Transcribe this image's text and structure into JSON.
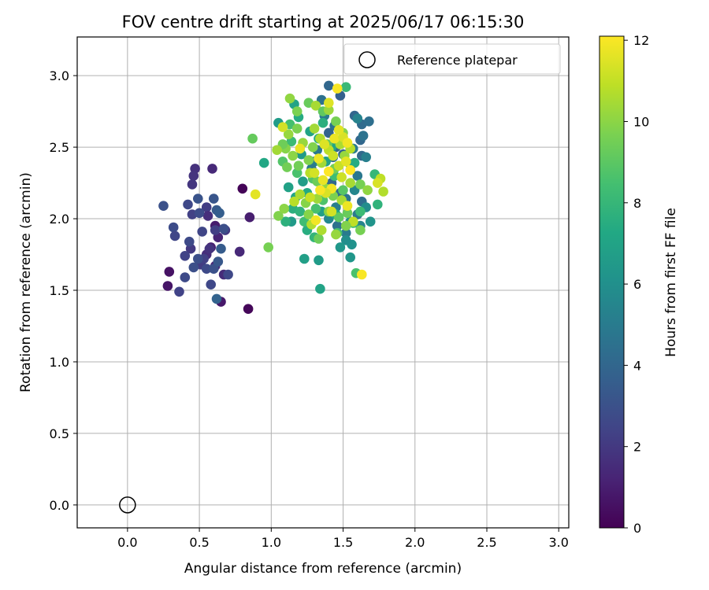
{
  "chart_data": {
    "type": "scatter",
    "title": "FOV centre drift starting at 2025/06/17 06:15:30",
    "xlabel": "Angular distance from reference (arcmin)",
    "ylabel": "Rotation from reference (arcmin)",
    "xlim": [
      -0.35,
      3.07
    ],
    "ylim": [
      -0.16,
      3.27
    ],
    "x_ticks": [
      "0.0",
      "0.5",
      "1.0",
      "1.5",
      "2.0",
      "2.5",
      "3.0"
    ],
    "y_ticks": [
      "0.0",
      "0.5",
      "1.0",
      "1.5",
      "2.0",
      "2.5",
      "3.0"
    ],
    "grid": true,
    "legend": {
      "position": "top-right",
      "entries": [
        {
          "label": "Reference platepar",
          "marker": "open-circle"
        }
      ]
    },
    "reference_point": {
      "label": "Reference platepar",
      "x": 0.0,
      "y": 0.0
    },
    "colorbar": {
      "label": "Hours from first FF file",
      "colormap": "viridis",
      "range": [
        0,
        12.1
      ],
      "ticks": [
        "0",
        "2",
        "4",
        "6",
        "8",
        "10",
        "12"
      ]
    },
    "series": [
      {
        "color_by": "Hours from first FF file",
        "points": [
          [
            0.29,
            1.63,
            0.6
          ],
          [
            0.28,
            1.53,
            0.7
          ],
          [
            0.65,
            1.42,
            0.8
          ],
          [
            0.84,
            1.37,
            0.2
          ],
          [
            0.8,
            2.21,
            0.1
          ],
          [
            0.85,
            2.01,
            1.0
          ],
          [
            0.78,
            1.77,
            1.4
          ],
          [
            0.61,
            1.95,
            0.9
          ],
          [
            0.63,
            1.87,
            1.2
          ],
          [
            0.67,
            1.61,
            1.5
          ],
          [
            0.61,
            1.67,
            1.3
          ],
          [
            0.58,
            1.8,
            1.1
          ],
          [
            0.55,
            1.75,
            1.6
          ],
          [
            0.47,
            2.35,
            1.7
          ],
          [
            0.46,
            2.3,
            1.8
          ],
          [
            0.45,
            2.24,
            1.9
          ],
          [
            0.59,
            2.35,
            1.4
          ],
          [
            0.55,
            2.08,
            2.2
          ],
          [
            0.56,
            2.02,
            1.6
          ],
          [
            0.52,
            1.91,
            2.5
          ],
          [
            0.58,
            1.54,
            2.6
          ],
          [
            0.51,
            1.68,
            2.1
          ],
          [
            0.53,
            1.72,
            2.3
          ],
          [
            0.44,
            1.79,
            2.0
          ],
          [
            0.4,
            1.74,
            2.4
          ],
          [
            0.49,
            1.72,
            2.9
          ],
          [
            0.55,
            1.65,
            2.7
          ],
          [
            0.57,
            1.79,
            1.8
          ],
          [
            0.61,
            1.92,
            2.2
          ],
          [
            0.68,
            1.92,
            2.0
          ],
          [
            0.25,
            2.09,
            3.0
          ],
          [
            0.42,
            2.1,
            2.6
          ],
          [
            0.45,
            2.03,
            2.3
          ],
          [
            0.49,
            2.14,
            3.1
          ],
          [
            0.5,
            2.04,
            2.8
          ],
          [
            0.6,
            2.14,
            3.2
          ],
          [
            0.62,
            2.06,
            3.4
          ],
          [
            0.64,
            2.04,
            3.6
          ],
          [
            0.32,
            1.94,
            2.8
          ],
          [
            0.33,
            1.88,
            2.5
          ],
          [
            0.43,
            1.84,
            2.7
          ],
          [
            0.4,
            1.59,
            2.7
          ],
          [
            0.36,
            1.49,
            2.4
          ],
          [
            0.46,
            1.66,
            2.9
          ],
          [
            0.6,
            1.65,
            3.0
          ],
          [
            0.63,
            1.7,
            3.3
          ],
          [
            0.65,
            1.79,
            3.5
          ],
          [
            0.62,
            1.44,
            3.8
          ],
          [
            0.7,
            1.61,
            2.6
          ],
          [
            0.67,
            1.93,
            2.9
          ],
          [
            1.4,
            2.93,
            4.0
          ],
          [
            1.48,
            2.86,
            3.7
          ],
          [
            1.35,
            2.83,
            4.5
          ],
          [
            1.37,
            2.72,
            5.0
          ],
          [
            1.44,
            2.65,
            4.6
          ],
          [
            1.4,
            2.6,
            3.9
          ],
          [
            1.45,
            2.5,
            4.2
          ],
          [
            1.5,
            2.45,
            3.8
          ],
          [
            1.43,
            2.43,
            4.4
          ],
          [
            1.32,
            2.48,
            4.8
          ],
          [
            1.3,
            2.4,
            5.2
          ],
          [
            1.28,
            2.35,
            4.9
          ],
          [
            1.35,
            2.2,
            5.4
          ],
          [
            1.42,
            2.25,
            4.1
          ],
          [
            1.48,
            2.18,
            4.3
          ],
          [
            1.52,
            2.14,
            4.7
          ],
          [
            1.45,
            2.08,
            5.1
          ],
          [
            1.4,
            2.0,
            5.6
          ],
          [
            1.46,
            1.95,
            4.5
          ],
          [
            1.52,
            1.9,
            5.0
          ],
          [
            1.58,
            2.72,
            3.9
          ],
          [
            1.63,
            2.66,
            4.2
          ],
          [
            1.68,
            2.68,
            4.4
          ],
          [
            1.6,
            2.7,
            5.3
          ],
          [
            1.62,
            2.55,
            4.0
          ],
          [
            1.64,
            2.58,
            4.6
          ],
          [
            1.57,
            2.49,
            5.0
          ],
          [
            1.63,
            2.44,
            4.1
          ],
          [
            1.66,
            2.43,
            5.2
          ],
          [
            1.55,
            2.38,
            5.7
          ],
          [
            1.6,
            2.3,
            4.8
          ],
          [
            1.58,
            2.2,
            5.5
          ],
          [
            1.63,
            2.12,
            4.3
          ],
          [
            1.66,
            2.08,
            5.8
          ],
          [
            1.6,
            2.03,
            4.9
          ],
          [
            1.55,
            1.98,
            6.0
          ],
          [
            1.62,
            1.95,
            5.4
          ],
          [
            1.69,
            1.98,
            6.2
          ],
          [
            1.56,
            1.82,
            6.1
          ],
          [
            1.52,
            1.85,
            5.9
          ],
          [
            1.55,
            1.73,
            6.3
          ],
          [
            1.48,
            1.8,
            6.4
          ],
          [
            1.33,
            1.71,
            6.6
          ],
          [
            1.23,
            1.72,
            6.8
          ],
          [
            1.34,
            1.51,
            7.0
          ],
          [
            1.05,
            2.67,
            6.6
          ],
          [
            0.95,
            2.39,
            7.2
          ],
          [
            1.16,
            2.8,
            7.0
          ],
          [
            1.19,
            2.71,
            7.4
          ],
          [
            1.12,
            2.22,
            6.9
          ],
          [
            1.15,
            2.07,
            7.6
          ],
          [
            1.17,
            2.15,
            7.1
          ],
          [
            1.22,
            2.26,
            6.7
          ],
          [
            1.25,
            2.18,
            7.3
          ],
          [
            1.2,
            2.05,
            7.8
          ],
          [
            1.14,
            1.98,
            6.5
          ],
          [
            1.1,
            1.98,
            7.7
          ],
          [
            1.25,
            1.92,
            7.5
          ],
          [
            1.3,
            1.87,
            7.9
          ],
          [
            1.35,
            2.05,
            6.8
          ],
          [
            1.45,
            2.03,
            7.2
          ],
          [
            1.38,
            2.4,
            6.9
          ],
          [
            1.42,
            2.5,
            7.1
          ],
          [
            1.33,
            2.56,
            7.3
          ],
          [
            1.36,
            2.67,
            7.6
          ],
          [
            1.27,
            2.61,
            7.0
          ],
          [
            1.21,
            2.45,
            6.6
          ],
          [
            1.58,
            2.39,
            7.4
          ],
          [
            1.72,
            2.31,
            8.0
          ],
          [
            1.74,
            2.1,
            7.8
          ],
          [
            1.62,
            2.05,
            8.2
          ],
          [
            1.57,
            1.97,
            8.4
          ],
          [
            1.59,
            1.62,
            8.6
          ],
          [
            1.52,
            2.92,
            8.1
          ],
          [
            1.31,
            2.07,
            8.5
          ],
          [
            1.36,
            2.13,
            8.7
          ],
          [
            1.44,
            2.3,
            8.3
          ],
          [
            1.5,
            2.2,
            8.9
          ],
          [
            1.29,
            2.28,
            8.8
          ],
          [
            1.18,
            2.32,
            8.6
          ],
          [
            1.23,
            1.98,
            8.3
          ],
          [
            1.46,
            1.9,
            8.4
          ],
          [
            1.13,
            2.66,
            8.5
          ],
          [
            1.14,
            2.54,
            8.2
          ],
          [
            1.08,
            2.4,
            8.8
          ],
          [
            0.87,
            2.56,
            9.2
          ],
          [
            0.98,
            1.8,
            9.6
          ],
          [
            1.05,
            2.02,
            9.8
          ],
          [
            1.09,
            2.07,
            10.0
          ],
          [
            1.1,
            2.49,
            9.9
          ],
          [
            1.12,
            2.59,
            10.2
          ],
          [
            1.08,
            2.52,
            9.4
          ],
          [
            1.04,
            2.48,
            10.4
          ],
          [
            1.11,
            2.36,
            9.5
          ],
          [
            1.13,
            2.84,
            10.1
          ],
          [
            1.18,
            2.75,
            9.7
          ],
          [
            1.26,
            2.81,
            9.3
          ],
          [
            1.31,
            2.79,
            10.5
          ],
          [
            1.36,
            2.75,
            9.1
          ],
          [
            1.4,
            2.76,
            10.3
          ],
          [
            1.45,
            2.68,
            9.6
          ],
          [
            1.5,
            2.6,
            9.9
          ],
          [
            1.48,
            2.52,
            10.6
          ],
          [
            1.39,
            2.52,
            9.2
          ],
          [
            1.34,
            2.56,
            10.7
          ],
          [
            1.29,
            2.5,
            9.8
          ],
          [
            1.22,
            2.53,
            10.2
          ],
          [
            1.15,
            2.44,
            10.0
          ],
          [
            1.19,
            2.37,
            9.5
          ],
          [
            1.27,
            2.32,
            10.8
          ],
          [
            1.32,
            2.26,
            9.4
          ],
          [
            1.38,
            2.21,
            10.1
          ],
          [
            1.43,
            2.16,
            9.7
          ],
          [
            1.49,
            2.13,
            10.5
          ],
          [
            1.53,
            2.04,
            9.3
          ],
          [
            1.57,
            1.98,
            10.9
          ],
          [
            1.62,
            1.92,
            9.6
          ],
          [
            1.51,
            2.44,
            10.2
          ],
          [
            1.55,
            2.49,
            10.8
          ],
          [
            1.44,
            2.35,
            9.5
          ],
          [
            1.35,
            2.39,
            10.4
          ],
          [
            1.26,
            2.41,
            9.8
          ],
          [
            1.2,
            2.17,
            10.6
          ],
          [
            1.24,
            2.11,
            9.9
          ],
          [
            1.32,
            2.14,
            10.3
          ],
          [
            1.4,
            2.05,
            10.0
          ],
          [
            1.47,
            2.01,
            9.1
          ],
          [
            1.28,
            1.96,
            10.7
          ],
          [
            1.33,
            1.86,
            9.4
          ],
          [
            1.45,
            1.89,
            10.2
          ],
          [
            1.52,
            1.95,
            9.8
          ],
          [
            1.55,
            2.25,
            10.5
          ],
          [
            1.62,
            2.24,
            9.6
          ],
          [
            1.67,
            2.2,
            10.1
          ],
          [
            1.78,
            2.19,
            10.7
          ],
          [
            1.76,
            2.28,
            10.9
          ],
          [
            1.3,
            2.63,
            10.4
          ],
          [
            1.18,
            2.63,
            9.7
          ],
          [
            1.16,
            2.12,
            10.8
          ],
          [
            1.26,
            2.03,
            9.9
          ],
          [
            1.35,
            1.92,
            10.6
          ],
          [
            1.4,
            2.48,
            10.9
          ],
          [
            1.43,
            2.44,
            11.2
          ],
          [
            1.37,
            2.52,
            11.5
          ],
          [
            1.33,
            2.42,
            11.8
          ],
          [
            1.3,
            2.32,
            11.3
          ],
          [
            1.36,
            2.27,
            11.7
          ],
          [
            1.42,
            2.21,
            11.9
          ],
          [
            1.38,
            2.18,
            11.4
          ],
          [
            1.34,
            2.2,
            12.0
          ],
          [
            1.47,
            2.37,
            11.1
          ],
          [
            1.52,
            2.4,
            11.6
          ],
          [
            1.55,
            2.34,
            12.1
          ],
          [
            1.49,
            2.29,
            11.2
          ],
          [
            1.44,
            2.56,
            11.8
          ],
          [
            1.5,
            2.57,
            11.4
          ],
          [
            1.53,
            2.53,
            11.9
          ],
          [
            1.46,
            2.91,
            12.0
          ],
          [
            1.4,
            2.81,
            11.5
          ],
          [
            1.08,
            2.64,
            11.3
          ],
          [
            0.89,
            2.17,
            11.6
          ],
          [
            1.2,
            2.49,
            11.7
          ],
          [
            1.27,
            2.15,
            11.1
          ],
          [
            1.31,
            1.99,
            11.9
          ],
          [
            1.42,
            2.05,
            11.3
          ],
          [
            1.53,
            2.09,
            11.8
          ],
          [
            1.63,
            1.61,
            12.0
          ],
          [
            1.74,
            2.25,
            11.4
          ],
          [
            1.47,
            2.62,
            11.6
          ],
          [
            1.4,
            2.33,
            12.1
          ]
        ]
      }
    ]
  }
}
